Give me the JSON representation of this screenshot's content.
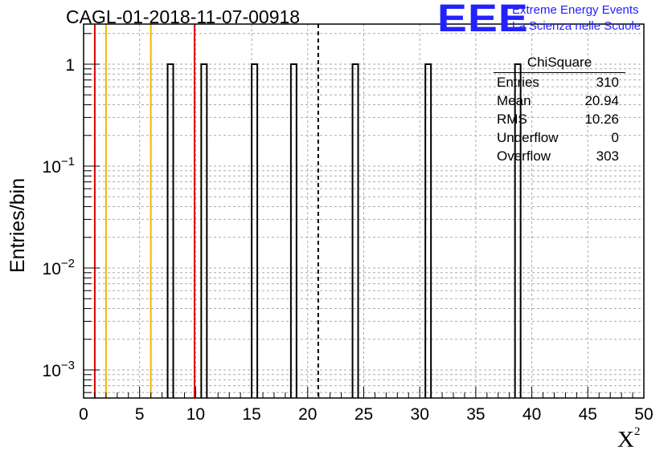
{
  "page": {
    "title": "CAGL-01-2018-11-07-00918",
    "logo_mark": "EEE",
    "logo_line1": "Extreme Energy Events",
    "logo_line2": "La Scienza nelle Scuole"
  },
  "stats_box": {
    "title": "ChiSquare",
    "rows": [
      {
        "label": "Entries",
        "value": "310"
      },
      {
        "label": "Mean",
        "value": "20.94"
      },
      {
        "label": "RMS",
        "value": "10.26"
      },
      {
        "label": "Underflow",
        "value": "0"
      },
      {
        "label": "Overflow",
        "value": "303"
      }
    ]
  },
  "colors": {
    "red_line": "#dd0000",
    "orange_line": "#f0b800",
    "logo_blue": "#2222ff",
    "grid": "#aaaaaa"
  },
  "chart_data": {
    "type": "bar",
    "xlabel": "χ²",
    "ylabel": "Entries/bin",
    "xlim": [
      0,
      50
    ],
    "ylim": [
      0.0005,
      2
    ],
    "y_scale": "log",
    "grid": true,
    "x_ticks": [
      0,
      5,
      10,
      15,
      20,
      25,
      30,
      35,
      40,
      45,
      50
    ],
    "x_tick_labels": [
      "0",
      "5",
      "10",
      "15",
      "20",
      "25",
      "30",
      "35",
      "40",
      "45",
      "50"
    ],
    "y_tick_labels": [
      {
        "value": 1,
        "base": "1",
        "exp": ""
      },
      {
        "value": 0.1,
        "base": "10",
        "exp": "−1"
      },
      {
        "value": 0.01,
        "base": "10",
        "exp": "−2"
      },
      {
        "value": 0.001,
        "base": "10",
        "exp": "−3"
      }
    ],
    "bin_width": 0.5,
    "bins": [
      {
        "x": 7.5,
        "value": 1
      },
      {
        "x": 10.5,
        "value": 1
      },
      {
        "x": 15.0,
        "value": 1
      },
      {
        "x": 18.5,
        "value": 1
      },
      {
        "x": 24.0,
        "value": 1
      },
      {
        "x": 30.5,
        "value": 1
      },
      {
        "x": 38.5,
        "value": 1
      }
    ],
    "vertical_lines": [
      {
        "x": 1.0,
        "color": "#dd0000",
        "style": "solid"
      },
      {
        "x": 2.0,
        "color": "#f0b800",
        "style": "solid"
      },
      {
        "x": 6.0,
        "color": "#f0b800",
        "style": "solid"
      },
      {
        "x": 9.9,
        "color": "#dd0000",
        "style": "solid"
      },
      {
        "x": 20.94,
        "color": "#000000",
        "style": "dashed"
      }
    ]
  }
}
